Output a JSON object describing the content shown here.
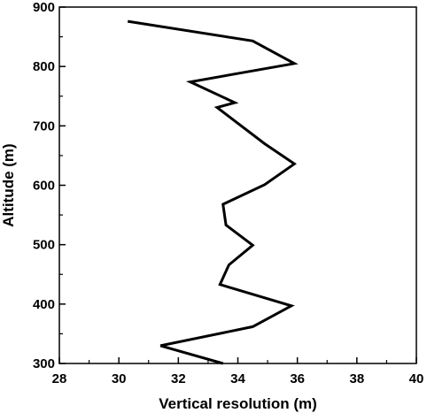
{
  "chart_data": {
    "type": "line",
    "xlabel": "Vertical resolution (m)",
    "ylabel": "Altitude (m)",
    "xlim": [
      28,
      40
    ],
    "ylim": [
      300,
      900
    ],
    "xticks": [
      28,
      30,
      32,
      34,
      36,
      38,
      40
    ],
    "yticks": [
      300,
      400,
      500,
      600,
      700,
      800,
      900
    ],
    "x_minor_step": 1,
    "y_minor_step": 50,
    "grid": false,
    "line_color": "#000000",
    "series": [
      {
        "points": [
          {
            "x": 30.3,
            "y": 876
          },
          {
            "x": 34.5,
            "y": 843
          },
          {
            "x": 35.9,
            "y": 805
          },
          {
            "x": 32.4,
            "y": 774
          },
          {
            "x": 33.9,
            "y": 739
          },
          {
            "x": 33.3,
            "y": 731
          },
          {
            "x": 34.9,
            "y": 670
          },
          {
            "x": 35.9,
            "y": 636
          },
          {
            "x": 34.9,
            "y": 601
          },
          {
            "x": 33.5,
            "y": 568
          },
          {
            "x": 33.6,
            "y": 533
          },
          {
            "x": 34.5,
            "y": 499
          },
          {
            "x": 33.7,
            "y": 466
          },
          {
            "x": 33.4,
            "y": 433
          },
          {
            "x": 35.8,
            "y": 397
          },
          {
            "x": 34.5,
            "y": 362
          },
          {
            "x": 31.4,
            "y": 330
          },
          {
            "x": 33.5,
            "y": 300
          }
        ]
      }
    ]
  }
}
